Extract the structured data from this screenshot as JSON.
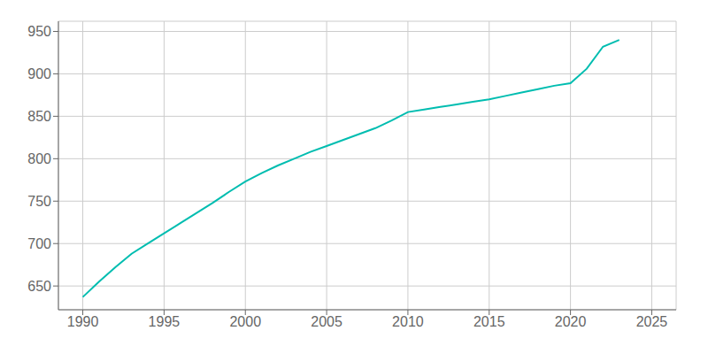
{
  "chart_data": {
    "type": "line",
    "x": [
      1990,
      1991,
      1992,
      1993,
      1994,
      1995,
      1996,
      1997,
      1998,
      1999,
      2000,
      2001,
      2002,
      2003,
      2004,
      2005,
      2006,
      2007,
      2008,
      2009,
      2010,
      2011,
      2012,
      2013,
      2014,
      2015,
      2016,
      2017,
      2018,
      2019,
      2020,
      2021,
      2022,
      2023
    ],
    "values": [
      637,
      655,
      672,
      688,
      700,
      712,
      724,
      736,
      748,
      761,
      773,
      783,
      792,
      800,
      808,
      815,
      822,
      829,
      836,
      845,
      855,
      858,
      861,
      864,
      867,
      870,
      874,
      878,
      882,
      886,
      889,
      906,
      932,
      940
    ],
    "color": "#00bdb0",
    "xlim": [
      1988.5,
      2026.5
    ],
    "ylim": [
      622,
      962
    ],
    "xticks": [
      1990,
      1995,
      2000,
      2005,
      2010,
      2015,
      2020,
      2025
    ],
    "yticks": [
      650,
      700,
      750,
      800,
      850,
      900,
      950
    ],
    "grid": true
  }
}
